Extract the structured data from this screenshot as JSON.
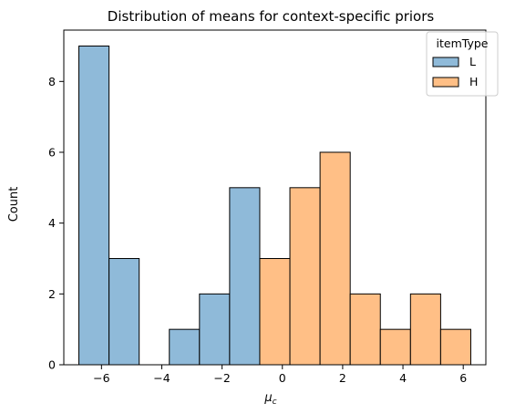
{
  "chart_data": {
    "type": "bar",
    "subtype": "histogram",
    "title": "Distribution of means for context-specific priors",
    "xlabel": "μ",
    "xlabel_subscript": "c",
    "ylabel": "Count",
    "xlim": [
      -7.25,
      6.75
    ],
    "ylim": [
      0,
      9.45
    ],
    "xticks": [
      -6,
      -4,
      -2,
      0,
      2,
      4,
      6
    ],
    "xtick_labels": [
      "−6",
      "−4",
      "−2",
      "0",
      "2",
      "4",
      "6"
    ],
    "yticks": [
      0,
      2,
      4,
      6,
      8
    ],
    "ytick_labels": [
      "0",
      "2",
      "4",
      "6",
      "8"
    ],
    "bin_edges": [
      -6.75,
      -5.75,
      -4.75,
      -3.75,
      -2.75,
      -1.75,
      -0.75,
      0.25,
      1.25,
      2.25,
      3.25,
      4.25,
      5.25,
      6.25
    ],
    "legend": {
      "title": "itemType",
      "position": "top-right"
    },
    "series": [
      {
        "name": "L",
        "color": "#8fbad9",
        "counts": [
          9,
          3,
          0,
          1,
          2,
          5,
          0,
          0,
          0,
          0,
          0,
          0,
          0
        ]
      },
      {
        "name": "H",
        "color": "#ffbf86",
        "counts": [
          0,
          0,
          0,
          0,
          0,
          0,
          3,
          5,
          6,
          2,
          1,
          2,
          1
        ]
      }
    ],
    "grid": false
  }
}
